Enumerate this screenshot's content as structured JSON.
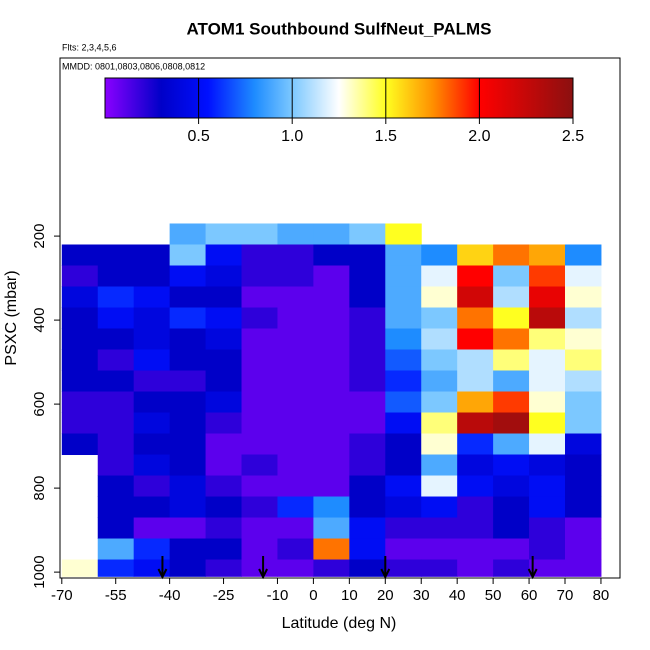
{
  "chart_data": {
    "type": "heatmap",
    "title": "ATOM1 Southbound SulfNeut_PALMS",
    "subtitle": "Flts: 2,3,4,5,6",
    "annotation": "MMDD: 0801,0803,0806,0808,0812",
    "xlabel": "Latitude (deg N)",
    "ylabel": "PSXC (mbar)",
    "xlim": [
      -70.5,
      85.3
    ],
    "ylim": [
      1014,
      -224
    ],
    "xticks": [
      -70,
      -55,
      -40,
      -25,
      -10,
      0,
      10,
      20,
      30,
      40,
      50,
      60,
      70,
      80
    ],
    "yticks": [
      200,
      400,
      600,
      800,
      1000
    ],
    "x_edges": [
      -70,
      -60,
      -50,
      -40,
      -30,
      -20,
      -10,
      0,
      10,
      20,
      30,
      40,
      50,
      60,
      70,
      80
    ],
    "y_edges": [
      170,
      220,
      270,
      320,
      370,
      420,
      470,
      520,
      570,
      620,
      670,
      720,
      770,
      820,
      870,
      920,
      970,
      1010
    ],
    "values": [
      [
        null,
        null,
        null,
        0.9,
        1.0,
        1.0,
        0.9,
        0.9,
        1.0,
        1.5,
        null,
        null,
        null,
        null,
        null
      ],
      [
        0.3,
        0.3,
        0.3,
        1.0,
        0.5,
        0.2,
        0.2,
        0.3,
        0.3,
        0.9,
        0.8,
        1.6,
        1.8,
        1.7,
        0.8
      ],
      [
        0.2,
        0.3,
        0.3,
        0.5,
        0.4,
        0.2,
        0.2,
        0.1,
        0.3,
        0.9,
        1.2,
        2.0,
        1.0,
        1.9,
        1.2
      ],
      [
        0.4,
        0.6,
        0.5,
        0.3,
        0.3,
        0.1,
        0.1,
        0.1,
        0.3,
        0.9,
        1.3,
        2.2,
        1.1,
        2.1,
        1.3
      ],
      [
        0.3,
        0.5,
        0.4,
        0.6,
        0.5,
        0.2,
        0.1,
        0.1,
        0.2,
        0.9,
        1.0,
        1.8,
        1.5,
        2.3,
        1.1
      ],
      [
        0.3,
        0.3,
        0.4,
        0.3,
        0.4,
        0.1,
        0.1,
        0.1,
        0.2,
        0.8,
        1.1,
        2.0,
        1.8,
        1.4,
        1.3
      ],
      [
        0.3,
        0.2,
        0.5,
        0.3,
        0.3,
        0.1,
        0.1,
        0.1,
        0.2,
        0.7,
        1.0,
        1.1,
        1.4,
        1.2,
        1.4
      ],
      [
        0.3,
        0.3,
        0.2,
        0.2,
        0.3,
        0.1,
        0.1,
        0.1,
        0.2,
        0.6,
        0.9,
        1.1,
        0.9,
        1.2,
        1.1
      ],
      [
        0.2,
        0.2,
        0.3,
        0.3,
        0.4,
        0.1,
        0.1,
        0.1,
        0.1,
        0.7,
        1.0,
        1.7,
        1.9,
        1.3,
        1.0
      ],
      [
        0.2,
        0.2,
        0.4,
        0.3,
        0.2,
        0.1,
        0.1,
        0.1,
        0.1,
        0.5,
        1.4,
        2.3,
        2.4,
        1.5,
        1.0
      ],
      [
        0.3,
        0.2,
        0.3,
        0.3,
        0.1,
        0.1,
        0.1,
        0.1,
        0.2,
        0.3,
        1.3,
        0.6,
        0.9,
        1.2,
        0.4
      ],
      [
        null,
        0.2,
        0.4,
        0.3,
        0.1,
        0.2,
        0.1,
        0.1,
        0.2,
        0.3,
        0.9,
        0.4,
        0.5,
        0.4,
        0.3
      ],
      [
        null,
        0.3,
        0.2,
        0.4,
        0.2,
        0.1,
        0.1,
        0.1,
        0.3,
        0.5,
        1.2,
        0.5,
        0.4,
        0.5,
        0.3
      ],
      [
        null,
        0.3,
        0.3,
        0.4,
        0.3,
        0.2,
        0.6,
        0.8,
        0.3,
        0.4,
        0.5,
        0.2,
        0.3,
        0.5,
        0.3
      ],
      [
        null,
        0.3,
        0.1,
        0.1,
        0.2,
        0.1,
        0.1,
        0.9,
        0.5,
        0.2,
        0.2,
        0.2,
        0.3,
        0.2,
        0.1
      ],
      [
        null,
        0.9,
        0.6,
        0.3,
        0.3,
        0.1,
        0.2,
        1.8,
        0.5,
        0.1,
        0.1,
        0.1,
        0.1,
        0.2,
        0.1
      ],
      [
        1.3,
        0.6,
        0.5,
        0.3,
        0.2,
        0.1,
        0.1,
        0.2,
        0.3,
        0.2,
        0.2,
        0.1,
        0.2,
        0.1,
        0.1
      ]
    ],
    "arrows": [
      -42,
      -14,
      20,
      61
    ],
    "colorlim": [
      0,
      2.5
    ],
    "colorticks": [
      0.5,
      {
        "value": 1,
        "label": "1.0"
      },
      1.5,
      {
        "value": 2,
        "label": "2.0"
      },
      2.5
    ],
    "colorscale": [
      [
        0,
        "#8a00ff"
      ],
      [
        0.3,
        "#0000c8"
      ],
      [
        0.55,
        "#0010ff"
      ],
      [
        0.8,
        "#1e8cff"
      ],
      [
        1.0,
        "#7cc8ff"
      ],
      [
        1.25,
        "#ffffff"
      ],
      [
        1.5,
        "#ffff20"
      ],
      [
        1.75,
        "#ff9000"
      ],
      [
        2.0,
        "#ff0000"
      ],
      [
        2.5,
        "#8b1010"
      ]
    ]
  }
}
